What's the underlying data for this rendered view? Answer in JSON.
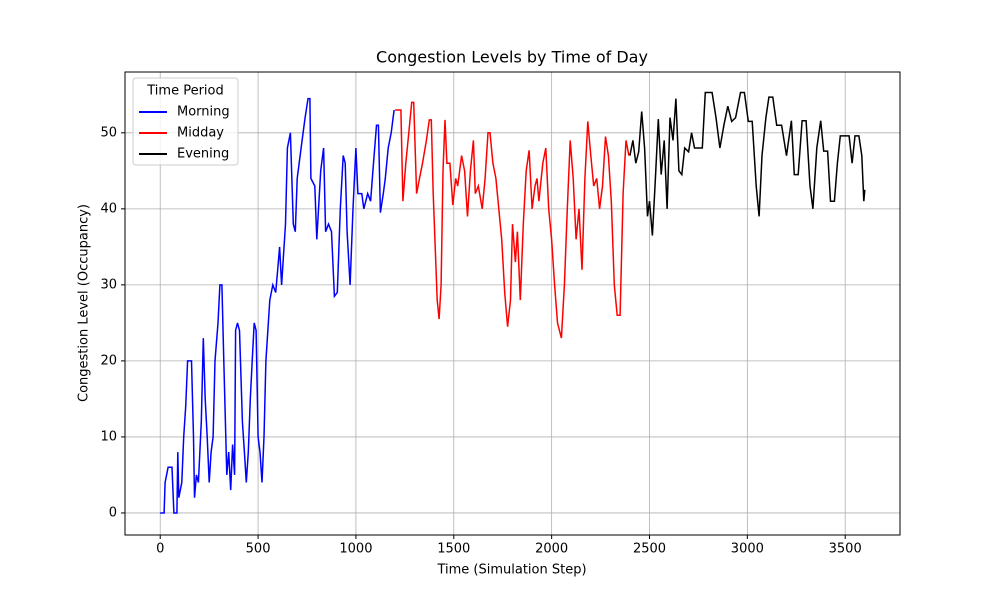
{
  "chart_data": {
    "type": "line",
    "title": "Congestion Levels by Time of Day",
    "x_label": "Time (Simulation Step)",
    "y_label": "Congestion Level (Occupancy)",
    "legend_title": "Time Period",
    "legend_position": "upper left",
    "grid": true,
    "xlim": [
      -180,
      3780
    ],
    "ylim": [
      -2.9,
      58.0
    ],
    "xticks": [
      0,
      500,
      1000,
      1500,
      2000,
      2500,
      3000,
      3500
    ],
    "yticks": [
      0,
      10,
      20,
      30,
      40,
      50
    ],
    "series": [
      {
        "name": "Morning",
        "color": "#0000ff",
        "x": [
          0,
          20,
          25,
          40,
          60,
          70,
          85,
          90,
          95,
          110,
          120,
          130,
          140,
          160,
          170,
          175,
          185,
          195,
          210,
          220,
          230,
          240,
          250,
          260,
          270,
          280,
          295,
          305,
          315,
          325,
          340,
          350,
          360,
          370,
          380,
          385,
          395,
          405,
          420,
          430,
          440,
          450,
          460,
          470,
          480,
          490,
          500,
          510,
          520,
          530,
          540,
          560,
          575,
          590,
          600,
          610,
          620,
          640,
          650,
          665,
          680,
          690,
          700,
          720,
          740,
          755,
          765,
          770,
          790,
          800,
          820,
          835,
          845,
          860,
          875,
          890,
          905,
          920,
          935,
          945,
          955,
          970,
          985,
          1000,
          1010,
          1030,
          1040,
          1060,
          1075,
          1090,
          1105,
          1115,
          1125,
          1140,
          1150,
          1165,
          1180,
          1195
        ],
        "values": [
          0,
          0,
          4,
          6,
          6,
          0,
          0,
          8,
          2,
          4,
          10,
          14,
          20,
          20,
          10,
          2,
          5,
          4,
          12,
          23,
          15,
          10,
          4,
          8,
          10,
          20,
          25,
          30,
          30,
          20,
          5,
          8,
          3,
          9,
          5,
          24,
          25,
          24,
          12,
          8,
          4,
          8,
          15,
          20,
          25,
          24,
          10,
          8,
          4,
          10,
          20,
          28,
          30,
          29,
          32,
          35,
          30,
          38,
          48,
          50,
          38,
          37,
          44,
          48,
          52,
          54.5,
          54.5,
          44,
          43,
          36,
          45,
          48,
          37,
          38,
          37,
          28.5,
          29,
          40,
          47,
          46,
          37,
          30,
          40,
          48,
          42,
          42,
          40,
          42,
          41,
          46,
          51,
          51,
          39.5,
          42,
          44,
          48,
          50,
          53
        ]
      },
      {
        "name": "Midday",
        "color": "#ff0000",
        "x": [
          1200,
          1230,
          1240,
          1255,
          1270,
          1285,
          1295,
          1310,
          1325,
          1340,
          1360,
          1375,
          1385,
          1395,
          1405,
          1415,
          1425,
          1435,
          1445,
          1455,
          1465,
          1480,
          1495,
          1510,
          1520,
          1540,
          1555,
          1570,
          1585,
          1600,
          1610,
          1625,
          1645,
          1660,
          1675,
          1685,
          1700,
          1715,
          1730,
          1745,
          1760,
          1775,
          1790,
          1800,
          1815,
          1825,
          1840,
          1855,
          1870,
          1885,
          1900,
          1915,
          1925,
          1935,
          1955,
          1970,
          1985,
          2000,
          2015,
          2030,
          2050,
          2065,
          2080,
          2095,
          2110,
          2125,
          2140,
          2155,
          2170,
          2185,
          2200,
          2215,
          2230,
          2245,
          2260,
          2275,
          2290,
          2305,
          2320,
          2335,
          2350,
          2365,
          2380,
          2395
        ],
        "values": [
          53,
          53,
          41,
          46,
          50,
          54,
          54,
          42,
          44,
          46,
          49,
          51.7,
          51.7,
          42,
          35,
          28,
          25.5,
          30,
          45,
          51.7,
          46,
          46,
          40.5,
          44,
          43,
          47,
          45,
          39,
          45,
          49,
          42,
          43,
          40,
          44,
          50,
          50,
          46,
          44,
          40,
          36,
          29,
          24.5,
          28,
          38,
          33,
          37,
          28,
          38,
          45,
          47.7,
          40,
          43,
          44,
          41,
          46,
          48,
          40,
          36,
          30,
          25,
          23,
          30,
          40,
          49,
          44,
          36,
          40,
          32,
          44,
          51.5,
          47,
          43,
          44,
          40,
          43,
          49.5,
          47,
          41,
          30,
          26,
          26,
          42,
          49,
          47
        ]
      },
      {
        "name": "Evening",
        "color": "#000000",
        "x": [
          2400,
          2415,
          2430,
          2445,
          2460,
          2475,
          2490,
          2500,
          2515,
          2530,
          2545,
          2560,
          2575,
          2590,
          2605,
          2620,
          2635,
          2650,
          2665,
          2680,
          2700,
          2715,
          2730,
          2750,
          2770,
          2785,
          2820,
          2840,
          2860,
          2880,
          2900,
          2920,
          2940,
          2965,
          2985,
          3005,
          3025,
          3045,
          3060,
          3075,
          3095,
          3110,
          3130,
          3150,
          3175,
          3200,
          3225,
          3240,
          3260,
          3280,
          3300,
          3320,
          3335,
          3355,
          3375,
          3390,
          3410,
          3425,
          3445,
          3460,
          3475,
          3500,
          3520,
          3535,
          3550,
          3570,
          3585,
          3595,
          3600
        ],
        "values": [
          47,
          49,
          46,
          47.5,
          52.8,
          48,
          39,
          41,
          36.5,
          44,
          51.8,
          44.5,
          49,
          40,
          52,
          49,
          54.5,
          45,
          44.5,
          48,
          47.5,
          50,
          48,
          48,
          48,
          55.3,
          55.3,
          52,
          48,
          51,
          53.5,
          51.5,
          52,
          55.3,
          55.3,
          51.5,
          51.5,
          43,
          39,
          47,
          52,
          54.7,
          54.7,
          51,
          51,
          47,
          51.6,
          44.5,
          44.5,
          51.6,
          51.6,
          43,
          40,
          48,
          51.6,
          47.6,
          47.6,
          41,
          41,
          46,
          49.6,
          49.6,
          49.6,
          46,
          49.6,
          49.6,
          47,
          41,
          42.5
        ]
      }
    ]
  }
}
